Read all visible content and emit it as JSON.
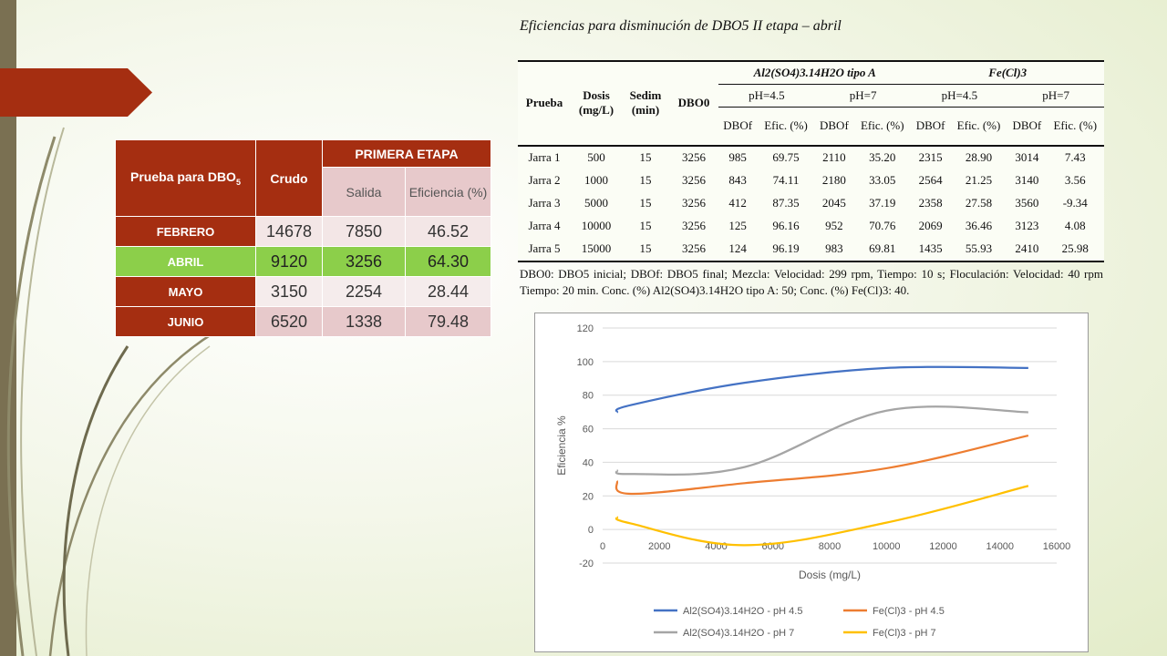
{
  "colors": {
    "accent_red": "#a52e11",
    "accent_green": "#8ccf4a",
    "pink": "#e7c9cb"
  },
  "table1": {
    "header_prueba": "Prueba para DBO",
    "header_prueba_sub": "5",
    "header_crudo": "Crudo",
    "header_etapa": "PRIMERA ETAPA",
    "header_salida": "Salida",
    "header_eficiencia": "Eficiencia (%)",
    "rows": [
      {
        "mes": "FEBRERO",
        "crudo": "14678",
        "salida": "7850",
        "eficiencia": "46.52"
      },
      {
        "mes": "ABRIL",
        "crudo": "9120",
        "salida": "3256",
        "eficiencia": "64.30"
      },
      {
        "mes": "MAYO",
        "crudo": "3150",
        "salida": "2254",
        "eficiencia": "28.44"
      },
      {
        "mes": "JUNIO",
        "crudo": "6520",
        "salida": "1338",
        "eficiencia": "79.48"
      }
    ]
  },
  "table2": {
    "title": "Eficiencias para disminución de DBO5 II etapa – abril",
    "group_al": "Al2(SO4)3.14H2O tipo A",
    "group_fe": "Fe(Cl)3",
    "col_prueba": "Prueba",
    "col_dosis": "Dosis (mg/L)",
    "col_sedim": "Sedim (min)",
    "col_dbo0": "DBO0",
    "ph45": "pH=4.5",
    "ph7": "pH=7",
    "dbof": "DBOf",
    "efic": "Efic. (%)",
    "rows": [
      [
        "Jarra 1",
        "500",
        "15",
        "3256",
        "985",
        "69.75",
        "2110",
        "35.20",
        "2315",
        "28.90",
        "3014",
        "7.43"
      ],
      [
        "Jarra 2",
        "1000",
        "15",
        "3256",
        "843",
        "74.11",
        "2180",
        "33.05",
        "2564",
        "21.25",
        "3140",
        "3.56"
      ],
      [
        "Jarra 3",
        "5000",
        "15",
        "3256",
        "412",
        "87.35",
        "2045",
        "37.19",
        "2358",
        "27.58",
        "3560",
        "-9.34"
      ],
      [
        "Jarra 4",
        "10000",
        "15",
        "3256",
        "125",
        "96.16",
        "952",
        "70.76",
        "2069",
        "36.46",
        "3123",
        "4.08"
      ],
      [
        "Jarra 5",
        "15000",
        "15",
        "3256",
        "124",
        "96.19",
        "983",
        "69.81",
        "1435",
        "55.93",
        "2410",
        "25.98"
      ]
    ],
    "note": "DBO0: DBO5 inicial; DBOf: DBO5 final; Mezcla: Velocidad: 299 rpm, Tiempo: 10 s; Floculación: Velocidad: 40 rpm Tiempo: 20 min. Conc. (%) Al2(SO4)3.14H2O tipo A: 50; Conc. (%) Fe(Cl)3: 40."
  },
  "chart_data": {
    "type": "line",
    "xlabel": "Dosis (mg/L)",
    "ylabel": "Eficiencia %",
    "xlim": [
      0,
      16000
    ],
    "ylim": [
      -20,
      120
    ],
    "xticks": [
      "0",
      "2000",
      "4000",
      "6000",
      "8000",
      "10000",
      "12000",
      "14000",
      "16000"
    ],
    "yticks": [
      "-20",
      "0",
      "20",
      "40",
      "60",
      "80",
      "100",
      "120"
    ],
    "legend_position": "bottom",
    "grid": true,
    "series": [
      {
        "name": "Al2(SO4)3.14H2O - pH 4.5",
        "color": "#4472c4",
        "x": [
          500,
          1000,
          5000,
          10000,
          15000
        ],
        "y": [
          69.75,
          74.11,
          87.35,
          96.16,
          96.19
        ]
      },
      {
        "name": "Fe(Cl)3 - pH 4.5",
        "color": "#ed7d31",
        "x": [
          500,
          1000,
          5000,
          10000,
          15000
        ],
        "y": [
          28.9,
          21.25,
          27.58,
          36.46,
          55.93
        ]
      },
      {
        "name": "Al2(SO4)3.14H2O - pH 7",
        "color": "#a5a5a5",
        "x": [
          500,
          1000,
          5000,
          10000,
          15000
        ],
        "y": [
          35.2,
          33.05,
          37.19,
          70.76,
          69.81
        ]
      },
      {
        "name": "Fe(Cl)3 - pH 7",
        "color": "#ffc000",
        "x": [
          500,
          1000,
          5000,
          10000,
          15000
        ],
        "y": [
          7.43,
          3.56,
          -9.34,
          4.08,
          25.98
        ]
      }
    ]
  }
}
